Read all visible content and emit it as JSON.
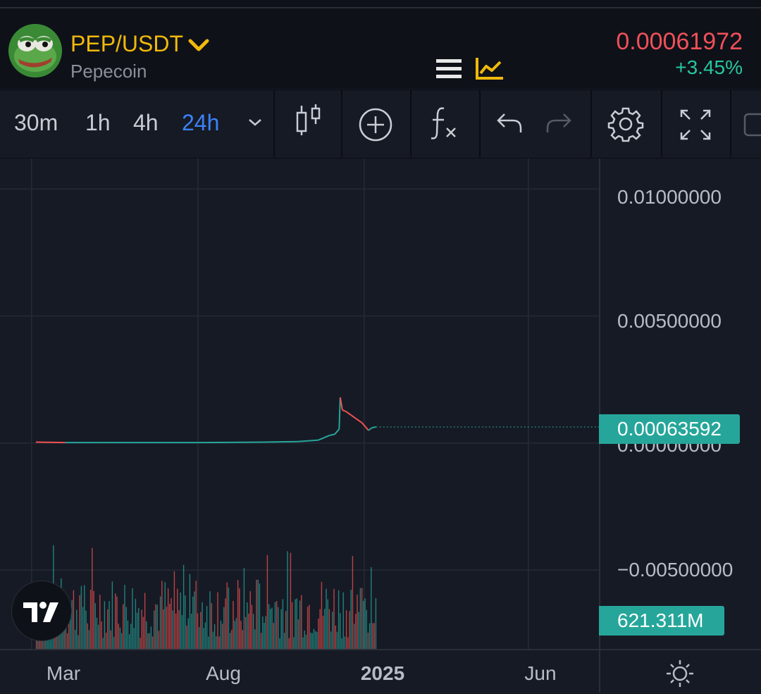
{
  "header": {
    "pair": "PEP/USDT",
    "name": "Pepecoin",
    "price": "0.00061972",
    "change": "+3.45%",
    "icons": [
      "frog-avatar-icon",
      "chevron-down-icon",
      "menu-icon",
      "chart-trend-icon"
    ]
  },
  "toolbar": {
    "timeframes": [
      "30m",
      "1h",
      "4h",
      "24h"
    ],
    "active_timeframe": "24h",
    "icons": [
      "timeframe-dropdown-icon",
      "candlestick-icon",
      "add-icon",
      "indicator-fx-icon",
      "undo-icon",
      "redo-icon",
      "settings-icon",
      "fullscreen-icon",
      "camera-icon"
    ]
  },
  "colors": {
    "up": "#26a69a",
    "down": "#ef5350",
    "accent": "#f0b90b",
    "active": "#3b82f6",
    "price_red": "#f0505a",
    "change_green": "#26c6a0"
  },
  "chart_data": {
    "type": "line",
    "y_ticks": [
      "0.01000000",
      "0.00500000",
      "0.00000000",
      "−0.00500000"
    ],
    "y_tick_values": [
      0.01,
      0.005,
      0,
      -0.005
    ],
    "ylim": [
      -0.0081,
      0.0112
    ],
    "x_ticks": [
      "Mar",
      "Aug",
      "2025",
      "Jun"
    ],
    "bold_x_tick": "2025",
    "xlim": [
      "2024-02-01",
      "2025-08-05"
    ],
    "current_price_label": "0.00063592",
    "volume_label": "621.311M",
    "series": [
      {
        "x": [
          "2024-03-05",
          "2024-04-01",
          "2024-05-01",
          "2024-06-01",
          "2024-07-01",
          "2024-08-01",
          "2024-09-01",
          "2024-10-01",
          "2024-11-01",
          "2024-11-20",
          "2024-11-30",
          "2024-12-05",
          "2024-12-09",
          "2024-12-10",
          "2024-12-12",
          "2024-12-15",
          "2024-12-20",
          "2024-12-25",
          "2024-12-30",
          "2025-01-02",
          "2025-01-05",
          "2025-01-08",
          "2025-01-12"
        ],
        "values": [
          4e-05,
          2e-05,
          2e-05,
          2e-05,
          2e-05,
          2e-05,
          3e-05,
          4e-05,
          6e-05,
          0.00012,
          0.0003,
          0.00035,
          0.00055,
          0.0018,
          0.0013,
          0.00125,
          0.0011,
          0.00095,
          0.0008,
          0.00065,
          0.0005,
          0.0006,
          0.00064
        ]
      }
    ]
  }
}
